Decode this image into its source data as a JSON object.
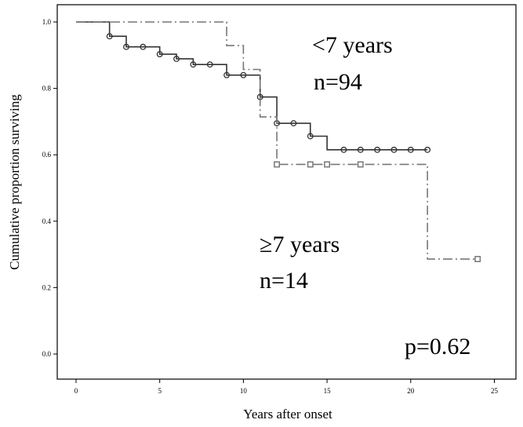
{
  "chart_data": {
    "type": "line",
    "subtype": "kaplan-meier",
    "title": "",
    "xlabel": "Years after onset",
    "ylabel": "Cumulative proportion surviving",
    "xlim": [
      0,
      25
    ],
    "ylim": [
      0.0,
      1.0
    ],
    "x_ticks": [
      0,
      5,
      10,
      15,
      20,
      25
    ],
    "y_ticks": [
      0.0,
      0.2,
      0.4,
      0.6,
      0.8,
      1.0
    ],
    "x_tick_labels": [
      "0",
      "5",
      "10",
      "15",
      "20",
      "25"
    ],
    "y_tick_labels": [
      "0.0",
      "0.2",
      "0.4",
      "0.6",
      "0.8",
      "1.0"
    ],
    "grid": false,
    "series": [
      {
        "line_style": "solid",
        "marker": "circle",
        "color": "#333333",
        "steps": [
          [
            0,
            1.0
          ],
          [
            2,
            0.957
          ],
          [
            3,
            0.925
          ],
          [
            5,
            0.903
          ],
          [
            6,
            0.889
          ],
          [
            7,
            0.872
          ],
          [
            9,
            0.84
          ],
          [
            11,
            0.774
          ],
          [
            12,
            0.695
          ],
          [
            14,
            0.656
          ],
          [
            15,
            0.615
          ],
          [
            21,
            0.615
          ]
        ],
        "censored": [
          [
            2,
            0.957
          ],
          [
            3,
            0.925
          ],
          [
            4,
            0.925
          ],
          [
            5,
            0.903
          ],
          [
            6,
            0.889
          ],
          [
            7,
            0.872
          ],
          [
            8,
            0.872
          ],
          [
            9,
            0.84
          ],
          [
            10,
            0.84
          ],
          [
            11,
            0.774
          ],
          [
            12,
            0.695
          ],
          [
            13,
            0.695
          ],
          [
            14,
            0.656
          ],
          [
            16,
            0.615
          ],
          [
            17,
            0.615
          ],
          [
            18,
            0.615
          ],
          [
            19,
            0.615
          ],
          [
            20,
            0.615
          ],
          [
            21,
            0.615
          ]
        ]
      },
      {
        "line_style": "dash-dot",
        "marker": "square",
        "color": "#777777",
        "steps": [
          [
            0,
            1.0
          ],
          [
            9,
            0.929
          ],
          [
            10,
            0.857
          ],
          [
            11,
            0.714
          ],
          [
            12,
            0.571
          ],
          [
            21,
            0.286
          ],
          [
            24,
            0.286
          ]
        ],
        "censored": [
          [
            12,
            0.571
          ],
          [
            14,
            0.571
          ],
          [
            15,
            0.571
          ],
          [
            17,
            0.571
          ],
          [
            24,
            0.286
          ]
        ]
      }
    ],
    "annotations": {
      "group1_label": "<7 years",
      "group1_n": "n=94",
      "group2_label": "≥7 years",
      "group2_n": "n=14",
      "p_value": "p=0.62"
    }
  }
}
